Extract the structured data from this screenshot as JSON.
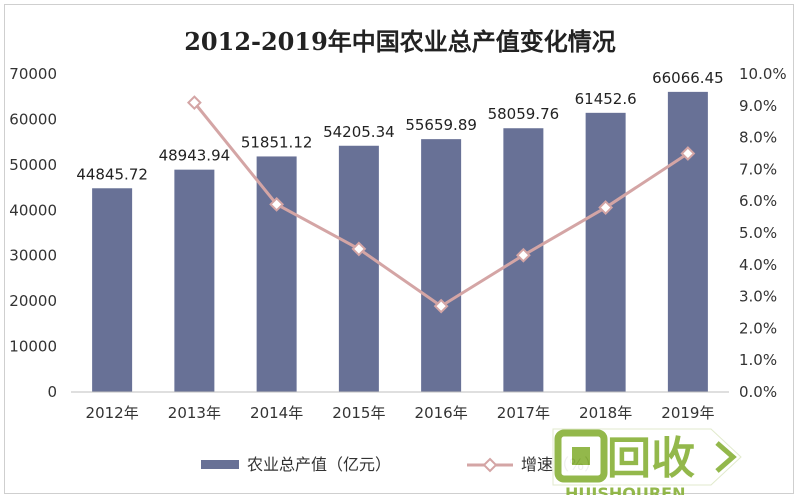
{
  "chart_data": {
    "type": "bar+line",
    "title": "2012-2019年中国农业总产值变化情况",
    "categories": [
      "2012年",
      "2013年",
      "2014年",
      "2015年",
      "2016年",
      "2017年",
      "2018年",
      "2019年"
    ],
    "series": [
      {
        "name": "农业总产值（亿元）",
        "type": "bar",
        "axis": "left",
        "color": "#687196",
        "values": [
          44845.72,
          48943.94,
          51851.12,
          54205.34,
          55659.89,
          58059.76,
          61452.6,
          66066.45
        ],
        "labels": [
          "44845.72",
          "48943.94",
          "51851.12",
          "54205.34",
          "55659.89",
          "58059.76",
          "61452.6",
          "66066.45"
        ]
      },
      {
        "name": "增速（%）",
        "type": "line",
        "axis": "right",
        "color": "#d4a5a5",
        "values": [
          null,
          9.1,
          5.9,
          4.5,
          2.7,
          4.3,
          5.8,
          7.5
        ]
      }
    ],
    "y_left": {
      "min": 0,
      "max": 70000,
      "ticks": [
        "0",
        "10000",
        "20000",
        "30000",
        "40000",
        "50000",
        "60000",
        "70000"
      ]
    },
    "y_right": {
      "min": 0,
      "max": 10,
      "ticks": [
        "0.0%",
        "1.0%",
        "2.0%",
        "3.0%",
        "4.0%",
        "5.0%",
        "6.0%",
        "7.0%",
        "8.0%",
        "9.0%",
        "10.0%"
      ]
    },
    "grid": false,
    "legend_position": "bottom"
  },
  "watermark": {
    "brand": "回收",
    "latin": "HUISHOUREN"
  }
}
